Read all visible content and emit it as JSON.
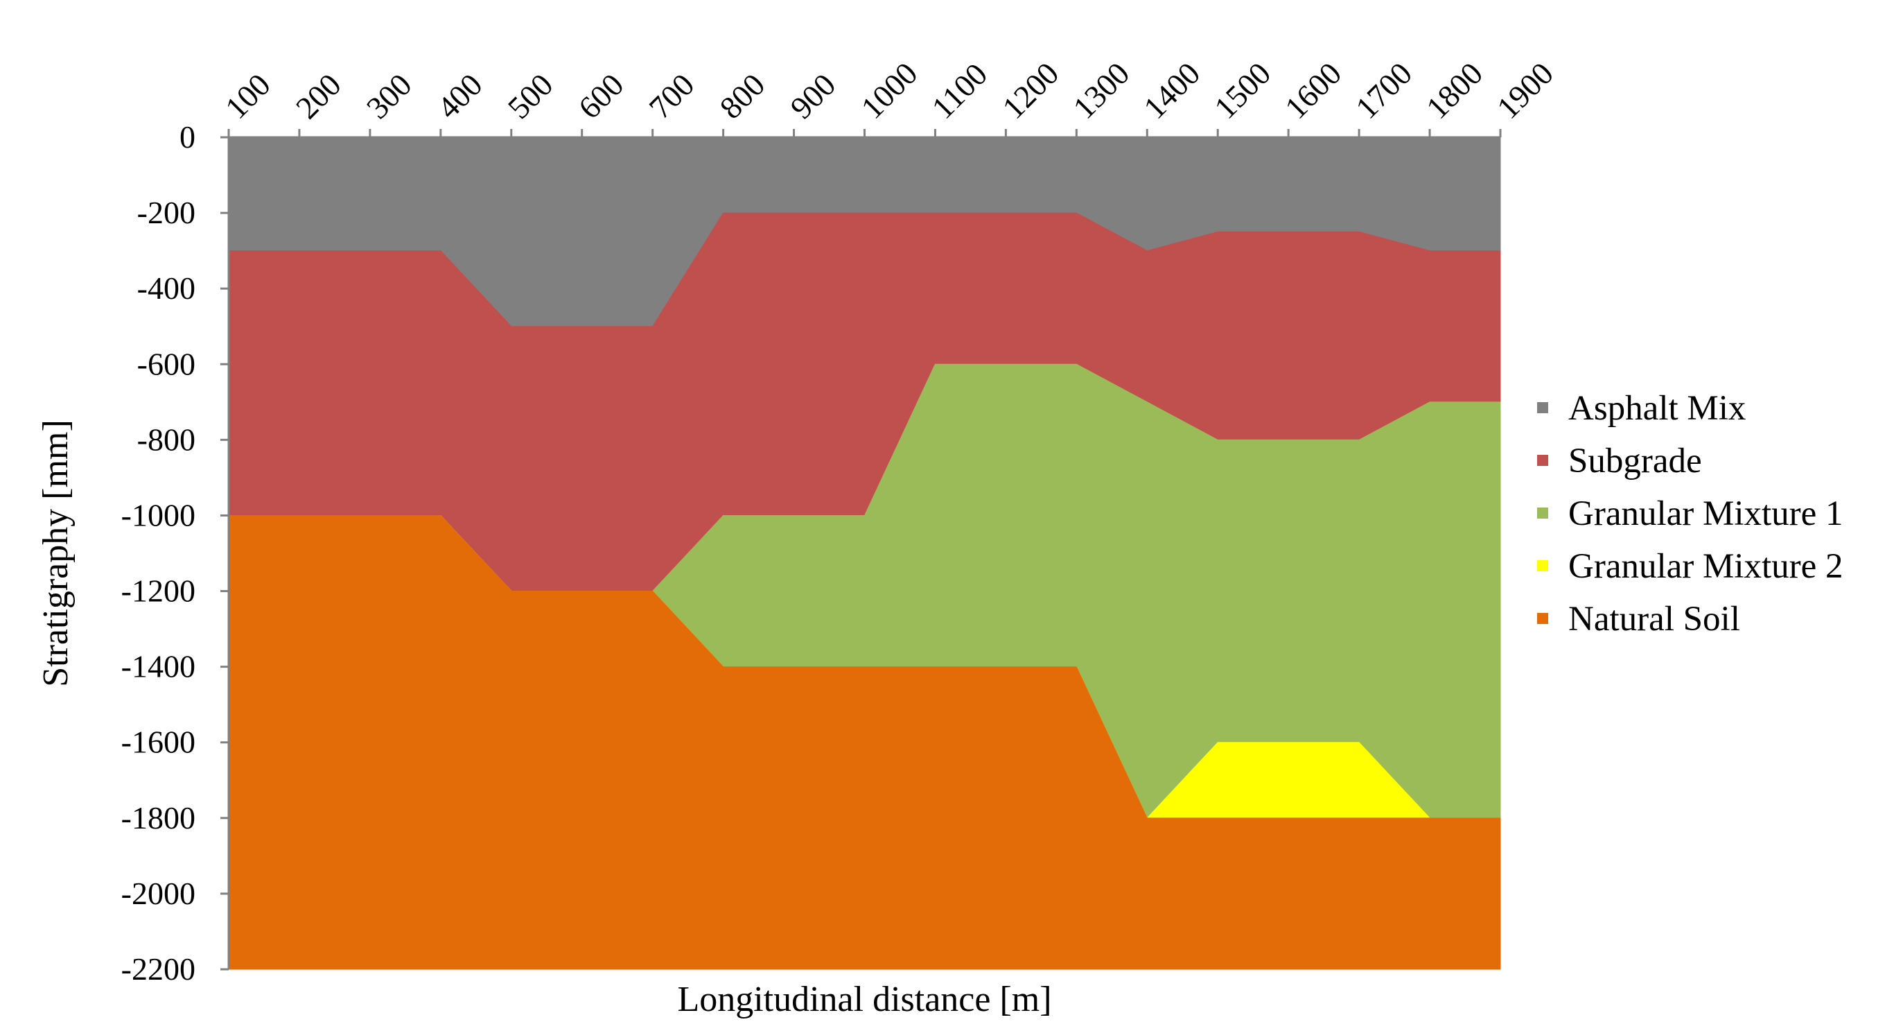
{
  "chart_data": {
    "type": "area",
    "title": "",
    "xlabel": "Longitudinal distance [m]",
    "ylabel": "Stratigraphy  [mm]",
    "x": [
      100,
      200,
      300,
      400,
      500,
      600,
      700,
      800,
      900,
      1000,
      1100,
      1200,
      1300,
      1400,
      1500,
      1600,
      1700,
      1800,
      1900
    ],
    "x_tick_labels": [
      "100",
      "200",
      "300",
      "400",
      "500",
      "600",
      "700",
      "800",
      "900",
      "1000",
      "1100",
      "1200",
      "1300",
      "1400",
      "1500",
      "1600",
      "1700",
      "1800",
      "1900"
    ],
    "y_tick_labels": [
      "0",
      "-200",
      "-400",
      "-600",
      "-800",
      "-1000",
      "-1200",
      "-1400",
      "-1600",
      "-1800",
      "-2000",
      "-2200"
    ],
    "xlim": [
      100,
      1900
    ],
    "ylim": [
      -2200,
      0
    ],
    "x_axis_position": "top",
    "grid": false,
    "legend_position": "right",
    "series": [
      {
        "name": "Asphalt Mix",
        "color": "#808080",
        "top": [
          0,
          0,
          0,
          0,
          0,
          0,
          0,
          0,
          0,
          0,
          0,
          0,
          0,
          0,
          0,
          0,
          0,
          0,
          0
        ],
        "bottom": [
          -300,
          -300,
          -300,
          -300,
          -500,
          -500,
          -500,
          -200,
          -200,
          -200,
          -200,
          -200,
          -200,
          -300,
          -250,
          -250,
          -250,
          -300,
          -300
        ]
      },
      {
        "name": "Subgrade",
        "color": "#c0504d",
        "top": [
          -300,
          -300,
          -300,
          -300,
          -500,
          -500,
          -500,
          -200,
          -200,
          -200,
          -200,
          -200,
          -200,
          -300,
          -250,
          -250,
          -250,
          -300,
          -300
        ],
        "bottom": [
          -1000,
          -1000,
          -1000,
          -1000,
          -1200,
          -1200,
          -1200,
          -1000,
          -1000,
          -1000,
          -600,
          -600,
          -600,
          -700,
          -800,
          -800,
          -800,
          -700,
          -700
        ]
      },
      {
        "name": "Granular Mixture 1",
        "color": "#9bbb59",
        "top": [
          -1000,
          -1000,
          -1000,
          -1000,
          -1200,
          -1200,
          -1200,
          -1000,
          -1000,
          -1000,
          -600,
          -600,
          -600,
          -700,
          -800,
          -800,
          -800,
          -700,
          -700
        ],
        "bottom": [
          -1000,
          -1000,
          -1000,
          -1000,
          -1200,
          -1200,
          -1200,
          -1400,
          -1400,
          -1400,
          -1400,
          -1400,
          -1400,
          -1800,
          -1600,
          -1600,
          -1600,
          -1800,
          -1800
        ]
      },
      {
        "name": "Granular Mixture 2",
        "color": "#ffff00",
        "top": [
          -1000,
          -1000,
          -1000,
          -1000,
          -1200,
          -1200,
          -1200,
          -1400,
          -1400,
          -1400,
          -1400,
          -1400,
          -1400,
          -1800,
          -1600,
          -1600,
          -1600,
          -1800,
          -1800
        ],
        "bottom": [
          -1000,
          -1000,
          -1000,
          -1000,
          -1200,
          -1200,
          -1200,
          -1400,
          -1400,
          -1400,
          -1400,
          -1400,
          -1400,
          -1800,
          -1800,
          -1800,
          -1800,
          -1800,
          -1800
        ]
      },
      {
        "name": "Natural Soil",
        "color": "#e36c09",
        "top": [
          -1000,
          -1000,
          -1000,
          -1000,
          -1200,
          -1200,
          -1200,
          -1400,
          -1400,
          -1400,
          -1400,
          -1400,
          -1400,
          -1800,
          -1800,
          -1800,
          -1800,
          -1800,
          -1800
        ],
        "bottom": [
          -2200,
          -2200,
          -2200,
          -2200,
          -2200,
          -2200,
          -2200,
          -2200,
          -2200,
          -2200,
          -2200,
          -2200,
          -2200,
          -2200,
          -2200,
          -2200,
          -2200,
          -2200,
          -2200
        ]
      }
    ]
  }
}
